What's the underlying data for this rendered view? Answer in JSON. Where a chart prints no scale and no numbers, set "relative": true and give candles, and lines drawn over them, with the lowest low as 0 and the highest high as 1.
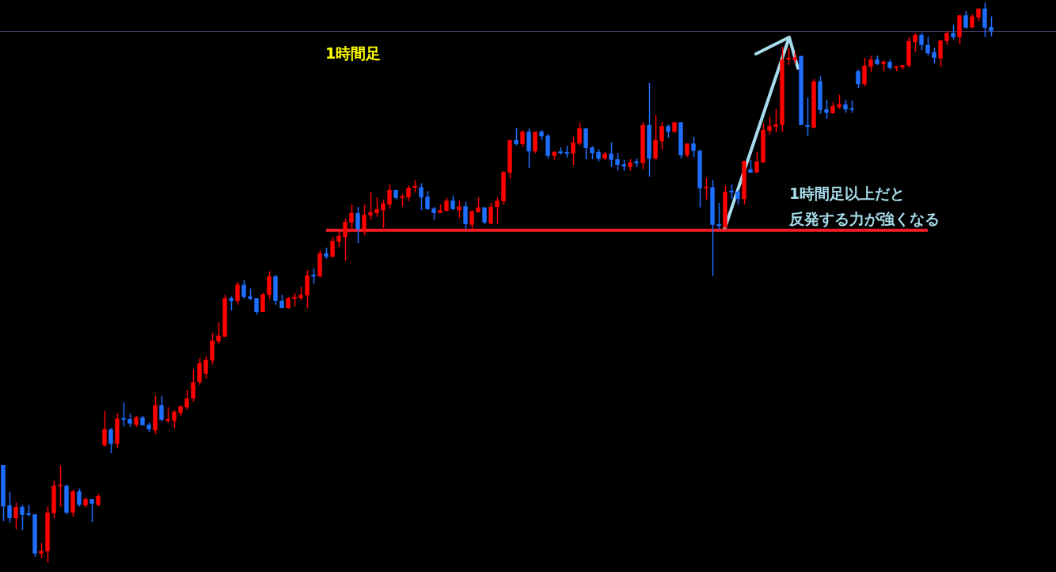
{
  "chart_data": {
    "type": "candlestick",
    "relative": true,
    "categories": [
      null,
      null,
      null,
      null,
      null,
      null,
      null,
      null,
      null,
      null,
      null,
      null,
      null,
      null,
      null,
      null,
      null,
      null,
      null,
      null,
      null,
      null,
      null,
      null,
      null,
      null,
      null,
      null,
      null,
      null,
      null,
      null,
      null,
      null,
      null,
      null,
      null,
      null,
      null,
      null,
      null,
      null,
      null,
      null,
      null,
      null,
      null,
      null,
      null,
      null,
      null,
      null,
      null,
      null,
      null,
      null,
      null,
      null,
      null,
      null,
      null,
      null,
      null,
      null,
      null,
      null,
      null,
      null,
      null,
      null,
      null,
      null,
      null,
      null,
      null,
      null,
      null,
      null,
      null,
      null,
      null,
      null,
      null,
      null,
      null,
      null,
      null,
      null,
      null,
      null,
      null,
      null,
      null,
      null,
      null,
      null,
      null,
      null,
      null,
      null,
      null,
      null,
      null,
      null,
      null,
      null,
      null,
      null,
      null,
      null,
      null,
      null,
      null,
      null,
      null,
      null,
      null,
      null,
      null,
      null,
      null,
      null,
      null,
      null,
      null,
      null,
      null,
      null,
      null,
      null,
      null,
      null,
      null,
      null,
      null,
      null,
      null,
      null,
      null,
      null,
      null,
      null,
      null,
      null,
      null,
      null,
      null,
      null,
      null,
      null,
      null,
      null,
      null,
      null,
      null,
      null,
      null
    ],
    "ohlc": [
      [
        0.174,
        0.174,
        0.074,
        0.1
      ],
      [
        0.102,
        0.126,
        0.071,
        0.079
      ],
      [
        0.079,
        0.107,
        0.059,
        0.099
      ],
      [
        0.099,
        0.103,
        0.058,
        0.085
      ],
      [
        0.086,
        0.103,
        0.082,
        0.085
      ],
      [
        0.086,
        0.086,
        0.01,
        0.016
      ],
      [
        0.016,
        0.035,
        0.008,
        0.021
      ],
      [
        0.02,
        0.1,
        0,
        0.089
      ],
      [
        0.088,
        0.146,
        0.079,
        0.137
      ],
      [
        0.136,
        0.173,
        0.1,
        0.139
      ],
      [
        0.137,
        0.139,
        0.086,
        0.089
      ],
      [
        0.089,
        0.13,
        0.082,
        0.127
      ],
      [
        0.127,
        0.132,
        0.1,
        0.103
      ],
      [
        0.102,
        0.116,
        0.098,
        0.113
      ],
      [
        0.113,
        0.113,
        0.072,
        0.105
      ],
      [
        0.103,
        0.122,
        0.1,
        0.119
      ],
      [
        0.209,
        0.27,
        0.207,
        0.238
      ],
      [
        0.238,
        0.24,
        0.195,
        0.212
      ],
      [
        0.212,
        0.266,
        0.205,
        0.257
      ],
      [
        0.256,
        0.286,
        0.243,
        0.255
      ],
      [
        0.256,
        0.266,
        0.242,
        0.248
      ],
      [
        0.246,
        0.262,
        0.242,
        0.259
      ],
      [
        0.259,
        0.262,
        0.245,
        0.245
      ],
      [
        0.246,
        0.25,
        0.233,
        0.238
      ],
      [
        0.236,
        0.298,
        0.229,
        0.281
      ],
      [
        0.281,
        0.297,
        0.252,
        0.255
      ],
      [
        0.253,
        0.277,
        0.249,
        0.256
      ],
      [
        0.253,
        0.272,
        0.24,
        0.269
      ],
      [
        0.267,
        0.28,
        0.262,
        0.279
      ],
      [
        0.277,
        0.308,
        0.273,
        0.293
      ],
      [
        0.293,
        0.345,
        0.287,
        0.322
      ],
      [
        0.322,
        0.365,
        0.317,
        0.356
      ],
      [
        0.337,
        0.369,
        0.328,
        0.362
      ],
      [
        0.361,
        0.41,
        0.354,
        0.396
      ],
      [
        0.395,
        0.429,
        0.39,
        0.405
      ],
      [
        0.403,
        0.478,
        0.403,
        0.472
      ],
      [
        0.472,
        0.475,
        0.45,
        0.467
      ],
      [
        0.467,
        0.501,
        0.46,
        0.496
      ],
      [
        0.496,
        0.504,
        0.471,
        0.474
      ],
      [
        0.475,
        0.489,
        0.468,
        0.471
      ],
      [
        0.472,
        0.472,
        0.443,
        0.447
      ],
      [
        0.447,
        0.481,
        0.447,
        0.479
      ],
      [
        0.478,
        0.52,
        0.47,
        0.511
      ],
      [
        0.511,
        0.513,
        0.46,
        0.467
      ],
      [
        0.467,
        0.478,
        0.454,
        0.454
      ],
      [
        0.454,
        0.474,
        0.453,
        0.472
      ],
      [
        0.471,
        0.481,
        0.457,
        0.474
      ],
      [
        0.472,
        0.492,
        0.468,
        0.478
      ],
      [
        0.477,
        0.522,
        0.454,
        0.513
      ],
      [
        0.513,
        0.525,
        0.498,
        0.511
      ],
      [
        0.511,
        0.557,
        0.509,
        0.552
      ],
      [
        0.552,
        0.562,
        0.542,
        0.546
      ],
      [
        0.546,
        0.581,
        0.545,
        0.574
      ],
      [
        0.573,
        0.591,
        0.563,
        0.583
      ],
      [
        0.581,
        0.614,
        0.539,
        0.608
      ],
      [
        0.607,
        0.639,
        0.594,
        0.624
      ],
      [
        0.624,
        0.635,
        0.57,
        0.595
      ],
      [
        0.595,
        0.639,
        0.584,
        0.621
      ],
      [
        0.62,
        0.661,
        0.612,
        0.625
      ],
      [
        0.624,
        0.652,
        0.617,
        0.631
      ],
      [
        0.629,
        0.648,
        0.597,
        0.641
      ],
      [
        0.639,
        0.675,
        0.632,
        0.665
      ],
      [
        0.665,
        0.665,
        0.648,
        0.651
      ],
      [
        0.651,
        0.658,
        0.635,
        0.653
      ],
      [
        0.652,
        0.673,
        0.645,
        0.669
      ],
      [
        0.669,
        0.683,
        0.661,
        0.672
      ],
      [
        0.67,
        0.677,
        0.629,
        0.652
      ],
      [
        0.653,
        0.663,
        0.629,
        0.631
      ],
      [
        0.632,
        0.635,
        0.612,
        0.624
      ],
      [
        0.624,
        0.639,
        0.624,
        0.629
      ],
      [
        0.628,
        0.651,
        0.627,
        0.646
      ],
      [
        0.646,
        0.655,
        0.629,
        0.631
      ],
      [
        0.629,
        0.646,
        0.615,
        0.636
      ],
      [
        0.636,
        0.644,
        0.595,
        0.604
      ],
      [
        0.603,
        0.629,
        0.595,
        0.627
      ],
      [
        0.625,
        0.652,
        0.625,
        0.634
      ],
      [
        0.634,
        0.634,
        0.604,
        0.607
      ],
      [
        0.605,
        0.642,
        0.604,
        0.635
      ],
      [
        0.635,
        0.652,
        0.604,
        0.646
      ],
      [
        0.645,
        0.699,
        0.639,
        0.697
      ],
      [
        0.696,
        0.754,
        0.685,
        0.754
      ],
      [
        0.754,
        0.776,
        0.745,
        0.747
      ],
      [
        0.747,
        0.772,
        0.743,
        0.769
      ],
      [
        0.769,
        0.775,
        0.704,
        0.734
      ],
      [
        0.734,
        0.769,
        0.731,
        0.769
      ],
      [
        0.769,
        0.772,
        0.754,
        0.761
      ],
      [
        0.762,
        0.765,
        0.721,
        0.726
      ],
      [
        0.726,
        0.734,
        0.719,
        0.733
      ],
      [
        0.734,
        0.741,
        0.728,
        0.731
      ],
      [
        0.733,
        0.744,
        0.723,
        0.73
      ],
      [
        0.73,
        0.76,
        0.71,
        0.75
      ],
      [
        0.748,
        0.785,
        0.745,
        0.775
      ],
      [
        0.775,
        0.775,
        0.72,
        0.74
      ],
      [
        0.741,
        0.743,
        0.72,
        0.731
      ],
      [
        0.733,
        0.738,
        0.716,
        0.721
      ],
      [
        0.721,
        0.733,
        0.719,
        0.73
      ],
      [
        0.73,
        0.75,
        0.706,
        0.719
      ],
      [
        0.72,
        0.731,
        0.7,
        0.71
      ],
      [
        0.711,
        0.719,
        0.699,
        0.707
      ],
      [
        0.706,
        0.72,
        0.699,
        0.714
      ],
      [
        0.716,
        0.721,
        0.706,
        0.713
      ],
      [
        0.713,
        0.786,
        0.702,
        0.781
      ],
      [
        0.781,
        0.856,
        0.689,
        0.721
      ],
      [
        0.721,
        0.799,
        0.719,
        0.754
      ],
      [
        0.752,
        0.786,
        0.737,
        0.779
      ],
      [
        0.779,
        0.782,
        0.758,
        0.769
      ],
      [
        0.769,
        0.786,
        0.767,
        0.786
      ],
      [
        0.786,
        0.786,
        0.721,
        0.727
      ],
      [
        0.727,
        0.748,
        0.724,
        0.748
      ],
      [
        0.748,
        0.76,
        0.724,
        0.735
      ],
      [
        0.735,
        0.737,
        0.634,
        0.668
      ],
      [
        0.668,
        0.687,
        0.648,
        0.67
      ],
      [
        0.67,
        0.683,
        0.512,
        0.603
      ],
      [
        0.604,
        0.642,
        0.594,
        0.601
      ],
      [
        0.598,
        0.673,
        0.597,
        0.662
      ],
      [
        0.663,
        0.675,
        0.649,
        0.661
      ],
      [
        0.662,
        0.665,
        0.639,
        0.649
      ],
      [
        0.649,
        0.717,
        0.639,
        0.717
      ],
      [
        0.702,
        0.719,
        0.696,
        0.696
      ],
      [
        0.696,
        0.733,
        0.696,
        0.716
      ],
      [
        0.714,
        0.784,
        0.714,
        0.772
      ],
      [
        0.771,
        0.796,
        0.764,
        0.779
      ],
      [
        0.778,
        0.81,
        0.768,
        0.782
      ],
      [
        0.781,
        0.921,
        0.769,
        0.898
      ],
      [
        0.898,
        0.919,
        0.888,
        0.901
      ],
      [
        0.897,
        0.911,
        0.891,
        0.902
      ],
      [
        0.904,
        0.905,
        0.781,
        0.781
      ],
      [
        0.781,
        0.83,
        0.761,
        0.778
      ],
      [
        0.776,
        0.863,
        0.776,
        0.859
      ],
      [
        0.859,
        0.868,
        0.801,
        0.808
      ],
      [
        0.809,
        0.826,
        0.792,
        0.803
      ],
      [
        0.802,
        0.822,
        0.801,
        0.815
      ],
      [
        0.813,
        0.835,
        0.81,
        0.818
      ],
      [
        0.818,
        0.826,
        0.803,
        0.809
      ],
      [
        0.81,
        0.825,
        0.803,
        0.808
      ],
      [
        0.877,
        0.88,
        0.847,
        0.854
      ],
      [
        0.854,
        0.901,
        0.85,
        0.887
      ],
      [
        0.885,
        0.905,
        0.876,
        0.898
      ],
      [
        0.898,
        0.905,
        0.888,
        0.89
      ],
      [
        0.89,
        0.897,
        0.877,
        0.894
      ],
      [
        0.894,
        0.898,
        0.88,
        0.883
      ],
      [
        0.883,
        0.887,
        0.877,
        0.885
      ],
      [
        0.884,
        0.888,
        0.88,
        0.888
      ],
      [
        0.887,
        0.938,
        0.884,
        0.931
      ],
      [
        0.929,
        0.945,
        0.912,
        0.942
      ],
      [
        0.942,
        0.946,
        0.915,
        0.924
      ],
      [
        0.924,
        0.939,
        0.905,
        0.909
      ],
      [
        0.911,
        0.919,
        0.891,
        0.901
      ],
      [
        0.9,
        0.932,
        0.885,
        0.932
      ],
      [
        0.931,
        0.949,
        0.924,
        0.945
      ],
      [
        0.945,
        0.96,
        0.934,
        0.938
      ],
      [
        0.938,
        0.977,
        0.925,
        0.977
      ],
      [
        0.977,
        0.984,
        0.953,
        0.955
      ],
      [
        0.955,
        0.979,
        0.955,
        0.975
      ],
      [
        0.973,
        0.989,
        0.966,
        0.989
      ],
      [
        0.989,
        1,
        0.938,
        0.955
      ],
      [
        0.956,
        0.975,
        0.939,
        0.949
      ]
    ],
    "colors": [
      "#1e6fff",
      "#1e6fff",
      "#ff0000",
      "#1e6fff",
      "#1e6fff",
      "#1e6fff",
      "#ff0000",
      "#ff0000",
      "#ff0000",
      "#ff0000",
      "#1e6fff",
      "#ff0000",
      "#1e6fff",
      "#ff0000",
      "#1e6fff",
      "#ff0000",
      "#ff0000",
      "#1e6fff",
      "#ff0000",
      "#1e6fff",
      "#1e6fff",
      "#ff0000",
      "#1e6fff",
      "#1e6fff",
      "#ff0000",
      "#1e6fff",
      "#ff0000",
      "#ff0000",
      "#ff0000",
      "#ff0000",
      "#ff0000",
      "#ff0000",
      "#ff0000",
      "#ff0000",
      "#ff0000",
      "#ff0000",
      "#1e6fff",
      "#ff0000",
      "#1e6fff",
      "#1e6fff",
      "#1e6fff",
      "#ff0000",
      "#ff0000",
      "#1e6fff",
      "#1e6fff",
      "#ff0000",
      "#ff0000",
      "#ff0000",
      "#ff0000",
      "#1e6fff",
      "#ff0000",
      "#1e6fff",
      "#ff0000",
      "#ff0000",
      "#ff0000",
      "#ff0000",
      "#1e6fff",
      "#ff0000",
      "#ff0000",
      "#ff0000",
      "#ff0000",
      "#ff0000",
      "#1e6fff",
      "#ff0000",
      "#ff0000",
      "#ff0000",
      "#1e6fff",
      "#1e6fff",
      "#1e6fff",
      "#ff0000",
      "#ff0000",
      "#1e6fff",
      "#ff0000",
      "#1e6fff",
      "#ff0000",
      "#ff0000",
      "#1e6fff",
      "#ff0000",
      "#ff0000",
      "#ff0000",
      "#ff0000",
      "#1e6fff",
      "#ff0000",
      "#1e6fff",
      "#ff0000",
      "#1e6fff",
      "#1e6fff",
      "#ff0000",
      "#1e6fff",
      "#1e6fff",
      "#ff0000",
      "#ff0000",
      "#1e6fff",
      "#1e6fff",
      "#1e6fff",
      "#ff0000",
      "#1e6fff",
      "#1e6fff",
      "#1e6fff",
      "#ff0000",
      "#1e6fff",
      "#ff0000",
      "#1e6fff",
      "#ff0000",
      "#ff0000",
      "#1e6fff",
      "#ff0000",
      "#1e6fff",
      "#ff0000",
      "#1e6fff",
      "#1e6fff",
      "#ff0000",
      "#1e6fff",
      "#1e6fff",
      "#ff0000",
      "#1e6fff",
      "#1e6fff",
      "#ff0000",
      "#1e6fff",
      "#ff0000",
      "#ff0000",
      "#ff0000",
      "#ff0000",
      "#ff0000",
      "#ff0000",
      "#ff0000",
      "#1e6fff",
      "#1e6fff",
      "#ff0000",
      "#1e6fff",
      "#1e6fff",
      "#ff0000",
      "#ff0000",
      "#1e6fff",
      "#1e6fff",
      "#1e6fff",
      "#ff0000",
      "#ff0000",
      "#1e6fff",
      "#ff0000",
      "#1e6fff",
      "#ff0000",
      "#ff0000",
      "#ff0000",
      "#ff0000",
      "#1e6fff",
      "#1e6fff",
      "#1e6fff",
      "#ff0000",
      "#ff0000",
      "#1e6fff",
      "#ff0000",
      "#1e6fff",
      "#ff0000",
      "#ff0000",
      "#1e6fff",
      "#1e6fff"
    ],
    "series": [
      {
        "type": "line",
        "color": "#ee1c25",
        "values": [
          null,
          null,
          null,
          null,
          null,
          null,
          null,
          null,
          null,
          null,
          null,
          null,
          null,
          null,
          null,
          null,
          null,
          null,
          null,
          null,
          null,
          null,
          null,
          null,
          null,
          null,
          null,
          null,
          null,
          null,
          null,
          null,
          null,
          null,
          null,
          null,
          null,
          null,
          null,
          null,
          null,
          null,
          null,
          null,
          null,
          null,
          null,
          null,
          null,
          null,
          null,
          0.593,
          null,
          null,
          null,
          null,
          null,
          null,
          null,
          null,
          null,
          null,
          null,
          null,
          null,
          null,
          null,
          null,
          null,
          null,
          null,
          null,
          null,
          null,
          null,
          null,
          null,
          null,
          null,
          null,
          null,
          null,
          null,
          null,
          null,
          null,
          null,
          null,
          null,
          null,
          null,
          null,
          null,
          null,
          null,
          null,
          null,
          null,
          null,
          null,
          null,
          null,
          null,
          null,
          null,
          null,
          null,
          null,
          null,
          null,
          null,
          null,
          null,
          null,
          null,
          null,
          null,
          null,
          null,
          null,
          null,
          null,
          null,
          null,
          null,
          null,
          null,
          null,
          null,
          null,
          null,
          null,
          null,
          null,
          null,
          null,
          null,
          null,
          null,
          null,
          null,
          null,
          null,
          null,
          null,
          null,
          0.593,
          null,
          null,
          null,
          null,
          null,
          null,
          null,
          null,
          null,
          null
        ]
      }
    ],
    "ref_lines": [
      {
        "axis": "y",
        "value": 0.949,
        "label": null,
        "color": "#4f4a7a"
      }
    ],
    "annotations": [
      "1時間足",
      "1時間足以上だと",
      "反発する力が強くなる"
    ]
  }
}
